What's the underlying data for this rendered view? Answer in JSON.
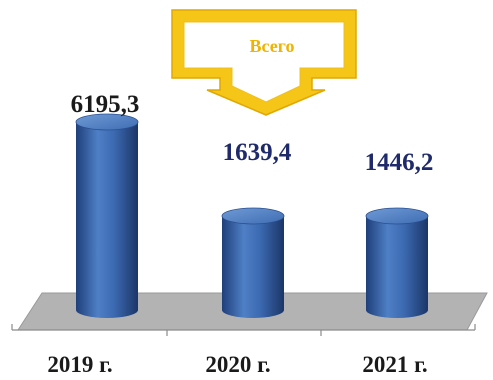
{
  "chart_data": {
    "type": "bar",
    "title": "",
    "categories": [
      "2019 г.",
      "2020 г.",
      "2021 г."
    ],
    "value_labels": [
      "6195,3",
      "1639,4",
      "1446,2"
    ],
    "values": [
      6195.3,
      1639.4,
      1446.2
    ],
    "colors": {
      "bar": "#3d6bb3",
      "floor": "#b3b3b3",
      "callout": "#f5c518"
    }
  },
  "callout": {
    "label": "Всего"
  }
}
